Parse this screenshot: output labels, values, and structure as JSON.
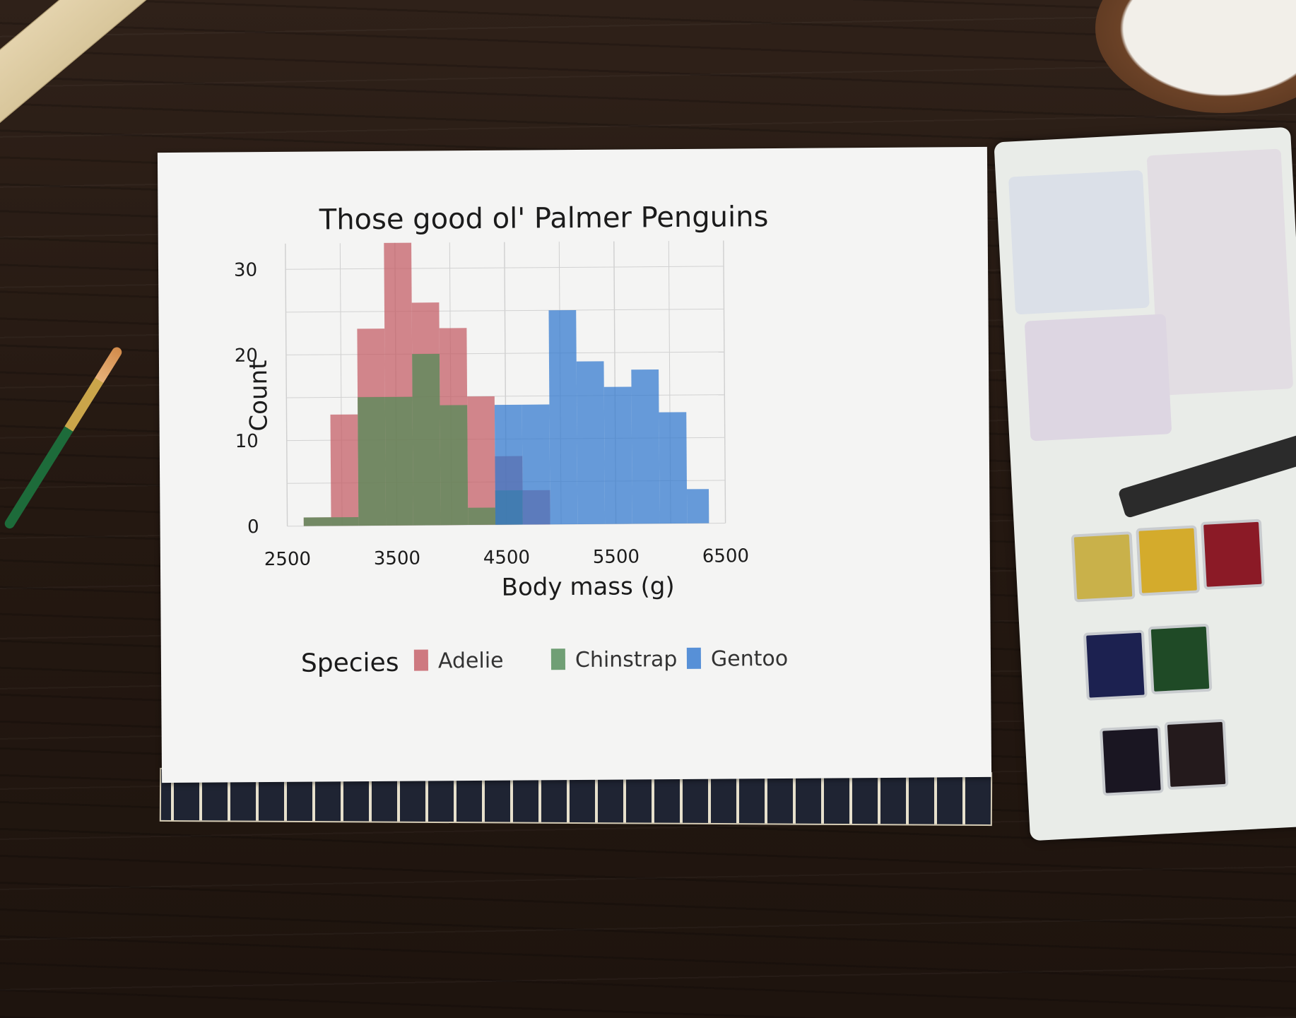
{
  "chart_data": {
    "type": "bar",
    "title": "Those good ol' Palmer Penguins",
    "xlabel": "Body mass (g)",
    "ylabel": "Count",
    "xlim": [
      2500,
      6500
    ],
    "ylim": [
      0,
      30
    ],
    "x_ticks": [
      "2500",
      "3500",
      "4500",
      "5500",
      "6500"
    ],
    "y_ticks": [
      "0",
      "10",
      "20",
      "30"
    ],
    "grid": true,
    "histogram": true,
    "bin_edges": [
      2650,
      2900,
      3150,
      3400,
      3650,
      3900,
      4150,
      4400,
      4650,
      4900,
      5150,
      5400,
      5650,
      5900,
      6150,
      6350
    ],
    "legend_title": "Species",
    "legend_position": "bottom",
    "series": [
      {
        "name": "Adelie",
        "color": "#c45a63",
        "values": [
          1,
          13,
          23,
          33,
          26,
          23,
          15,
          8,
          4,
          0,
          0,
          0,
          0,
          0,
          0
        ]
      },
      {
        "name": "Chinstrap",
        "color": "#4f8a55",
        "values": [
          1,
          1,
          15,
          15,
          20,
          14,
          2,
          4,
          0,
          0,
          0,
          0,
          0,
          0,
          0
        ]
      },
      {
        "name": "Gentoo",
        "color": "#2f77cf",
        "values": [
          0,
          0,
          0,
          0,
          0,
          0,
          0,
          14,
          14,
          25,
          19,
          16,
          18,
          13,
          4
        ]
      }
    ]
  }
}
